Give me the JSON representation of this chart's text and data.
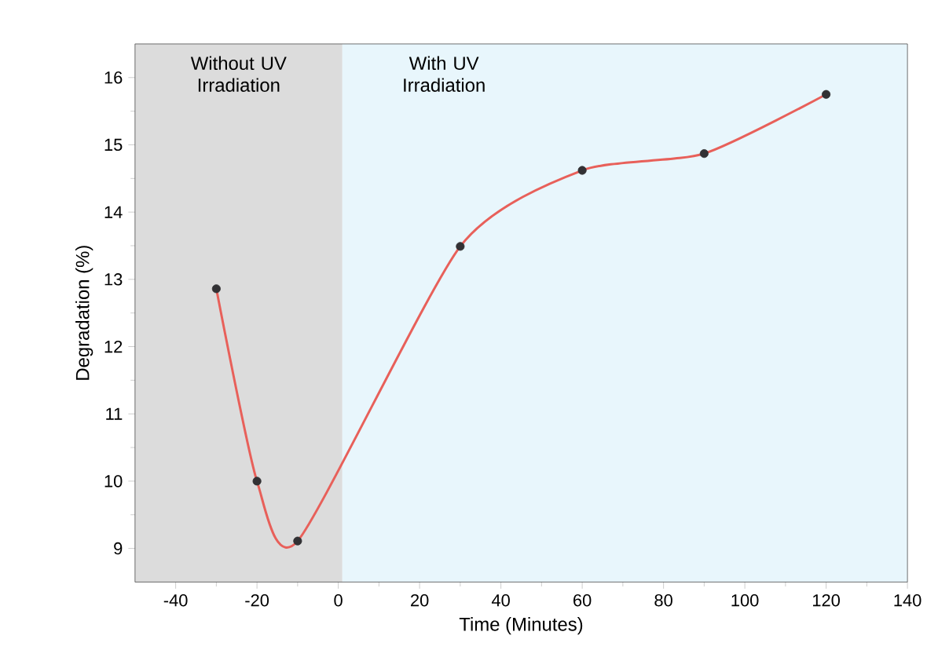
{
  "chart_data": {
    "type": "line",
    "xlabel": "Time (Minutes)",
    "ylabel": "Degradation (%)",
    "x": [
      -30,
      -20,
      -10,
      30,
      60,
      90,
      120
    ],
    "series": [
      {
        "color": "#e8605a",
        "values": [
          12.86,
          10.0,
          9.11,
          13.49,
          14.62,
          14.87,
          15.75
        ]
      }
    ],
    "marker": "circle",
    "line_style": "solid",
    "grid": false,
    "xlim": [
      -50,
      140
    ],
    "xticks": [
      -40,
      -20,
      0,
      20,
      40,
      60,
      80,
      100,
      120,
      140
    ],
    "ylim": [
      8.5,
      16.5
    ],
    "yticks": [
      9,
      10,
      11,
      12,
      13,
      14,
      15,
      16
    ],
    "bands": [
      {
        "axis": "x",
        "from": -50,
        "to": 1,
        "label": "Without UV Irradiation",
        "color": "#dcdcdc"
      },
      {
        "axis": "x",
        "from": 1,
        "to": 140,
        "label": "With UV Irradiation",
        "color": "#e8f6fc"
      }
    ]
  }
}
